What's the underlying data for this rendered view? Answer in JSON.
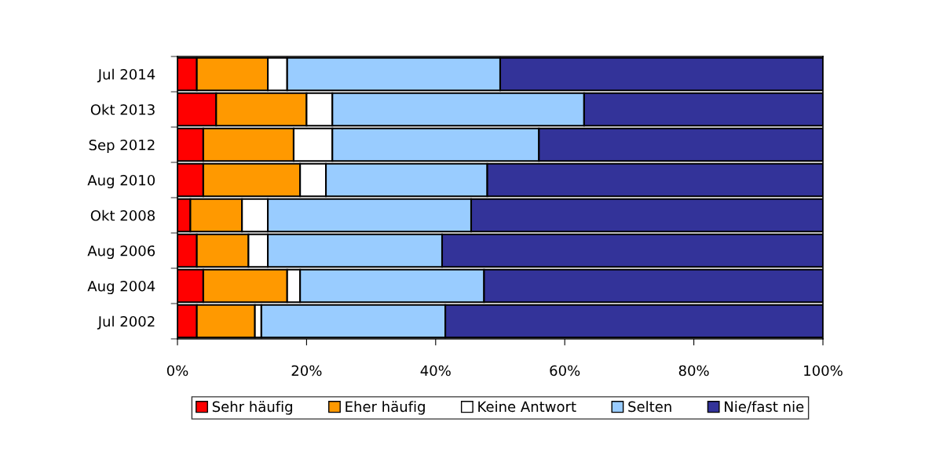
{
  "chart_data": {
    "type": "bar",
    "orientation": "horizontal",
    "stacked": true,
    "categories": [
      "Jul 2014",
      "Okt 2013",
      "Sep 2012",
      "Aug 2010",
      "Okt 2008",
      "Aug 2006",
      "Aug 2004",
      "Jul 2002"
    ],
    "series": [
      {
        "name": "Sehr häufig",
        "color": "#ff0000",
        "values": [
          3,
          6,
          4,
          4,
          2,
          3,
          4,
          3
        ]
      },
      {
        "name": "Eher häufig",
        "color": "#ff9900",
        "values": [
          11,
          14,
          14,
          15,
          8,
          8,
          13,
          9
        ]
      },
      {
        "name": "Keine Antwort",
        "color": "#ffffff",
        "values": [
          3,
          4,
          6,
          4,
          4,
          3,
          2,
          1
        ]
      },
      {
        "name": "Selten",
        "color": "#99ccff",
        "values": [
          33,
          39,
          32,
          25,
          31.5,
          27,
          28.5,
          28.5
        ]
      },
      {
        "name": "Nie/fast nie",
        "color": "#333399",
        "values": [
          50,
          37,
          44,
          52,
          54.5,
          59,
          52.5,
          58.5
        ]
      }
    ],
    "xlim": [
      0,
      100
    ],
    "xticks": [
      {
        "value": 0,
        "label": "0%"
      },
      {
        "value": 20,
        "label": "20%"
      },
      {
        "value": 40,
        "label": "40%"
      },
      {
        "value": 60,
        "label": "60%"
      },
      {
        "value": 80,
        "label": "80%"
      },
      {
        "value": 100,
        "label": "100%"
      }
    ],
    "grid": false,
    "legend": "bottom"
  }
}
